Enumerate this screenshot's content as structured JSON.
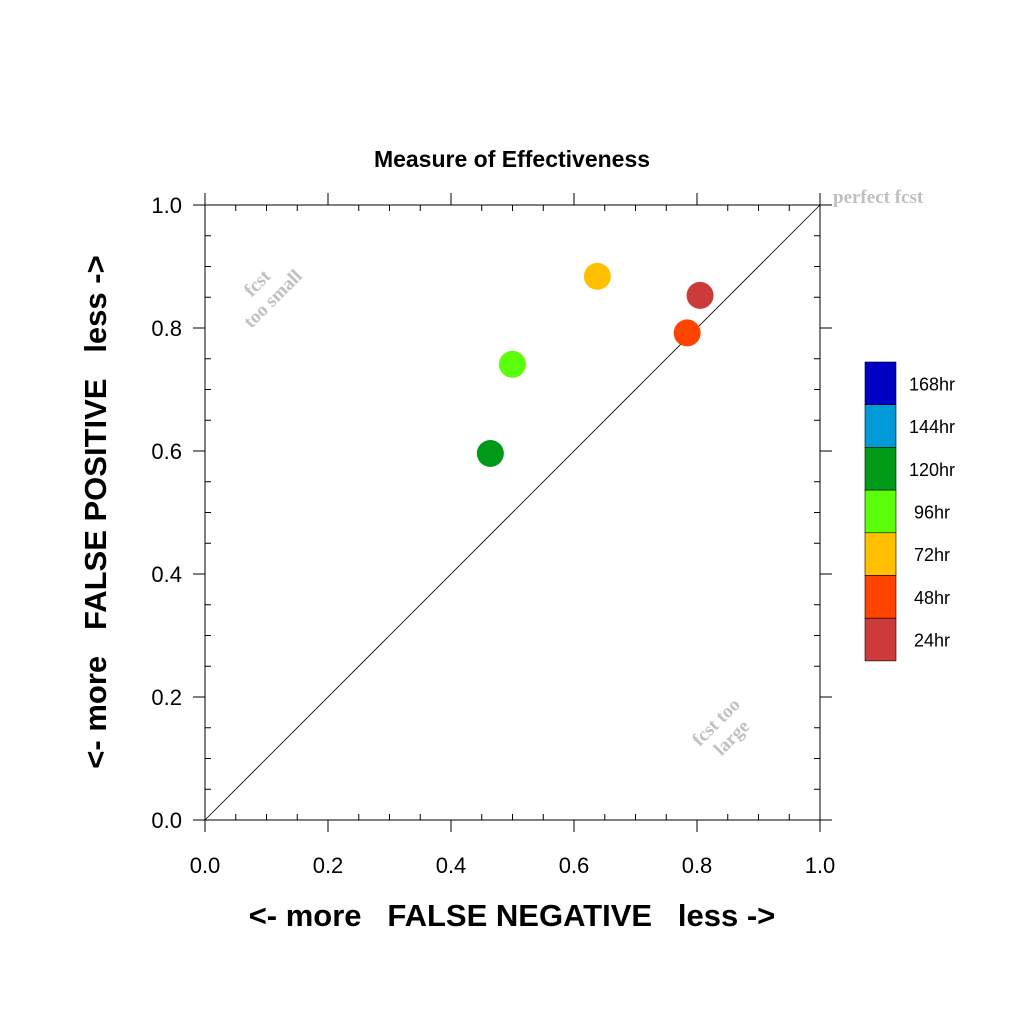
{
  "chart_data": {
    "type": "scatter",
    "title": "Measure of Effectiveness",
    "xlabel": "<- more   FALSE NEGATIVE   less ->",
    "ylabel": "<- more   FALSE POSITIVE   less ->",
    "xlim": [
      0.0,
      1.0
    ],
    "ylim": [
      0.0,
      1.0
    ],
    "x_ticks": [
      "0.0",
      "0.2",
      "0.4",
      "0.6",
      "0.8",
      "1.0"
    ],
    "y_ticks": [
      "0.0",
      "0.2",
      "0.4",
      "0.6",
      "0.8",
      "1.0"
    ],
    "diagonal_line": true,
    "grid": false,
    "legend_position": "right",
    "series": [
      {
        "name": "24hr",
        "color": "#cc3a3a",
        "x": 0.805,
        "y": 0.853
      },
      {
        "name": "48hr",
        "color": "#ff4400",
        "x": 0.784,
        "y": 0.792
      },
      {
        "name": "72hr",
        "color": "#ffc000",
        "x": 0.638,
        "y": 0.884
      },
      {
        "name": "96hr",
        "color": "#5cff0a",
        "x": 0.5,
        "y": 0.741
      },
      {
        "name": "120hr",
        "color": "#009a16",
        "x": 0.464,
        "y": 0.596
      }
    ],
    "legend": [
      {
        "label": "168hr",
        "color": "#0000c4"
      },
      {
        "label": "144hr",
        "color": "#009ad8"
      },
      {
        "label": "120hr",
        "color": "#009a16"
      },
      {
        "label": "96hr",
        "color": "#5cff0a"
      },
      {
        "label": "72hr",
        "color": "#ffc000"
      },
      {
        "label": "48hr",
        "color": "#ff4400"
      },
      {
        "label": "24hr",
        "color": "#cc3a3a"
      }
    ],
    "annotations": {
      "perfect": "perfect fcst",
      "too_small": [
        "fcst",
        "too small"
      ],
      "too_large": [
        "fcst too",
        "large"
      ]
    }
  }
}
